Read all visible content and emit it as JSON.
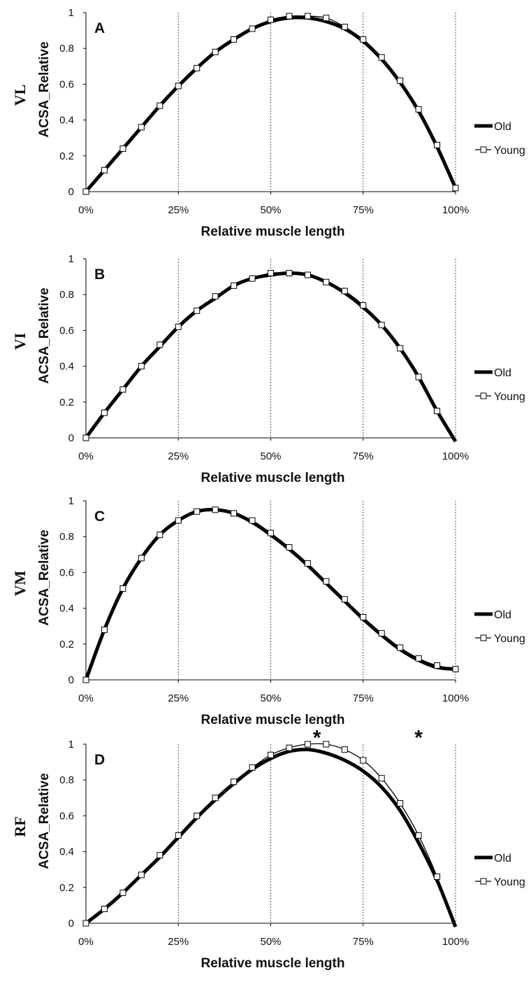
{
  "chart_data": [
    {
      "type": "line",
      "panel_letter": "A",
      "muscle": "VL",
      "xlabel": "Relative muscle length",
      "ylabel": "ACSA_Relative",
      "x_ticks": [
        "0%",
        "25%",
        "50%",
        "75%",
        "100%"
      ],
      "y_ticks": [
        "0",
        "0.2",
        "0.4",
        "0.6",
        "0.8",
        "1"
      ],
      "xlim": [
        0,
        100
      ],
      "ylim": [
        0,
        1
      ],
      "x": [
        0,
        5,
        10,
        15,
        20,
        25,
        30,
        35,
        40,
        45,
        50,
        55,
        60,
        65,
        70,
        75,
        80,
        85,
        90,
        95,
        100
      ],
      "series": [
        {
          "name": "Old",
          "values": [
            0,
            0.12,
            0.24,
            0.36,
            0.48,
            0.59,
            0.69,
            0.78,
            0.85,
            0.91,
            0.95,
            0.97,
            0.97,
            0.95,
            0.91,
            0.84,
            0.74,
            0.61,
            0.45,
            0.25,
            0.02
          ]
        },
        {
          "name": "Young",
          "values": [
            0,
            0.12,
            0.24,
            0.36,
            0.48,
            0.59,
            0.69,
            0.78,
            0.85,
            0.91,
            0.96,
            0.98,
            0.98,
            0.97,
            0.92,
            0.85,
            0.75,
            0.62,
            0.46,
            0.26,
            0.02
          ]
        }
      ],
      "asterisks": []
    },
    {
      "type": "line",
      "panel_letter": "B",
      "muscle": "VI",
      "xlabel": "Relative muscle length",
      "ylabel": "ACSA_Relative",
      "x_ticks": [
        "0%",
        "25%",
        "50%",
        "75%",
        "100%"
      ],
      "y_ticks": [
        "0",
        "0.2",
        "0.4",
        "0.6",
        "0.8",
        "1"
      ],
      "xlim": [
        0,
        100
      ],
      "ylim": [
        0,
        1
      ],
      "x": [
        0,
        5,
        10,
        15,
        20,
        25,
        30,
        35,
        40,
        45,
        50,
        55,
        60,
        65,
        70,
        75,
        80,
        85,
        90,
        95,
        100
      ],
      "series": [
        {
          "name": "Old",
          "values": [
            0,
            0.14,
            0.27,
            0.4,
            0.51,
            0.62,
            0.71,
            0.78,
            0.85,
            0.89,
            0.91,
            0.92,
            0.91,
            0.87,
            0.81,
            0.73,
            0.63,
            0.5,
            0.34,
            0.15,
            -0.02
          ]
        },
        {
          "name": "Young",
          "values": [
            0,
            0.14,
            0.27,
            0.4,
            0.52,
            0.62,
            0.71,
            0.79,
            0.85,
            0.89,
            0.92,
            0.92,
            0.91,
            0.87,
            0.82,
            0.74,
            0.63,
            0.5,
            0.34,
            0.15,
            -0.02
          ]
        }
      ],
      "asterisks": []
    },
    {
      "type": "line",
      "panel_letter": "C",
      "muscle": "VM",
      "xlabel": "Relative muscle length",
      "ylabel": "ACSA_Relative",
      "x_ticks": [
        "0%",
        "25%",
        "50%",
        "75%",
        "100%"
      ],
      "y_ticks": [
        "0",
        "0.2",
        "0.4",
        "0.6",
        "0.8",
        "1"
      ],
      "xlim": [
        0,
        100
      ],
      "ylim": [
        0,
        1
      ],
      "x": [
        0,
        5,
        10,
        15,
        20,
        25,
        30,
        35,
        40,
        45,
        50,
        55,
        60,
        65,
        70,
        75,
        80,
        85,
        90,
        95,
        100
      ],
      "series": [
        {
          "name": "Old",
          "values": [
            0,
            0.28,
            0.51,
            0.68,
            0.81,
            0.89,
            0.94,
            0.95,
            0.93,
            0.88,
            0.81,
            0.73,
            0.64,
            0.54,
            0.44,
            0.34,
            0.25,
            0.17,
            0.11,
            0.07,
            0.06
          ]
        },
        {
          "name": "Young",
          "values": [
            0,
            0.28,
            0.51,
            0.68,
            0.81,
            0.89,
            0.94,
            0.95,
            0.93,
            0.89,
            0.82,
            0.74,
            0.65,
            0.55,
            0.45,
            0.35,
            0.26,
            0.18,
            0.12,
            0.08,
            0.06
          ]
        }
      ],
      "asterisks": []
    },
    {
      "type": "line",
      "panel_letter": "D",
      "muscle": "RF",
      "xlabel": "Relative muscle length",
      "ylabel": "ACSA_Relative",
      "x_ticks": [
        "0%",
        "25%",
        "50%",
        "75%",
        "100%"
      ],
      "y_ticks": [
        "0",
        "0.2",
        "0.4",
        "0.6",
        "0.8",
        "1"
      ],
      "xlim": [
        0,
        100
      ],
      "ylim": [
        0,
        1
      ],
      "x": [
        0,
        5,
        10,
        15,
        20,
        25,
        30,
        35,
        40,
        45,
        50,
        55,
        60,
        65,
        70,
        75,
        80,
        85,
        90,
        95,
        100
      ],
      "series": [
        {
          "name": "Old",
          "values": [
            0,
            0.08,
            0.17,
            0.27,
            0.37,
            0.48,
            0.59,
            0.69,
            0.78,
            0.86,
            0.92,
            0.96,
            0.97,
            0.95,
            0.91,
            0.85,
            0.76,
            0.63,
            0.45,
            0.24,
            -0.02
          ]
        },
        {
          "name": "Young",
          "values": [
            0,
            0.08,
            0.17,
            0.27,
            0.38,
            0.49,
            0.6,
            0.7,
            0.79,
            0.87,
            0.94,
            0.98,
            1.0,
            1.0,
            0.97,
            0.91,
            0.81,
            0.67,
            0.49,
            0.26,
            -0.02
          ]
        }
      ],
      "asterisks": [
        {
          "label": "*",
          "x": 62.5,
          "y": 1.06
        },
        {
          "label": "*",
          "x": 90,
          "y": 1.06
        }
      ]
    }
  ],
  "legend": {
    "old_label": "Old",
    "young_label": "Young"
  },
  "colors": {
    "old": "#000000",
    "young": "#000000",
    "marker_fill": "#ffffff",
    "gridline": "#555555"
  }
}
